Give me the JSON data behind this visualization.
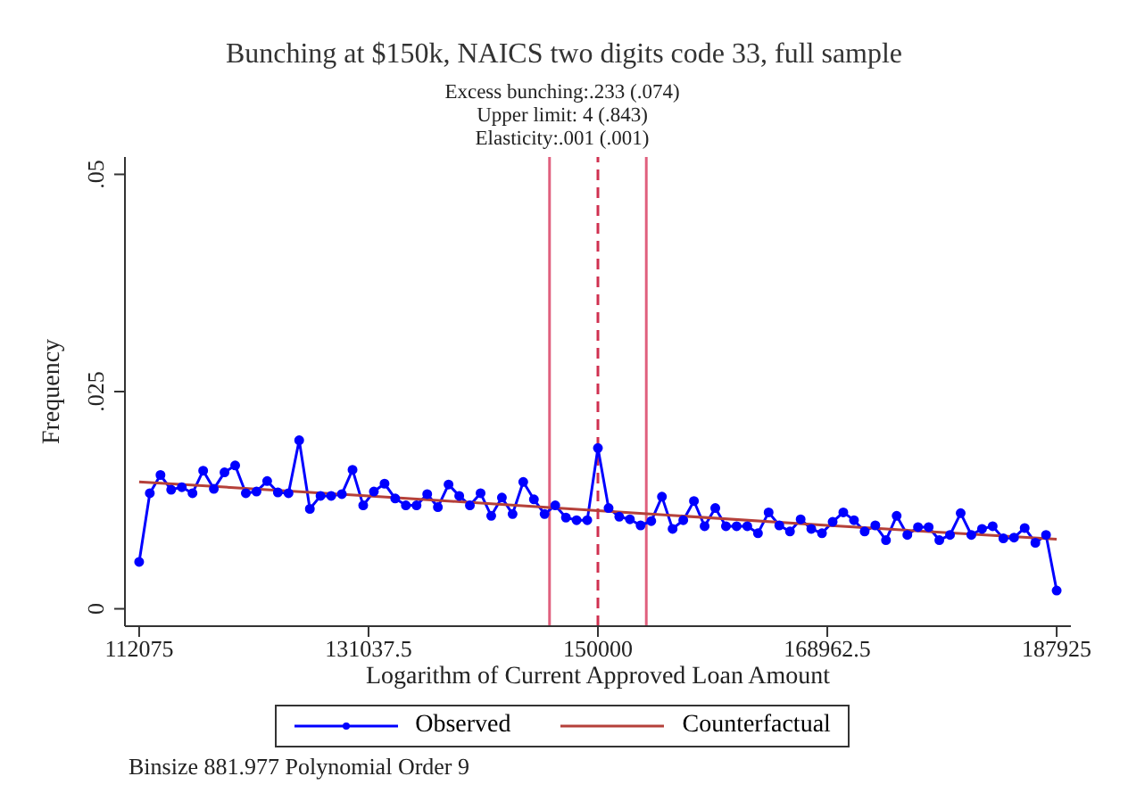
{
  "chart_data": {
    "type": "line",
    "title": "Bunching at $150k, NAICS two digits code 33, full sample",
    "xlabel": "Logarithm of Current Approved Loan Amount",
    "ylabel": "Frequency",
    "annotations": [
      "Excess bunching:.233 (.074)",
      "Upper limit: 4 (.843)",
      "Elasticity:.001 (.001)",
      "Binsize 881.977 Polynomial Order 9"
    ],
    "xlim": [
      110900,
      189100
    ],
    "xticks": [
      112075,
      131037.5,
      150000,
      168962.5,
      187925
    ],
    "ylim": [
      -0.002,
      0.052
    ],
    "yticks": [
      0,
      {
        "value": 0.025,
        "label": ".025"
      },
      {
        "value": 0.05,
        "label": ".05"
      }
    ],
    "grid": false,
    "legend": "bottom",
    "ref_lines": [
      {
        "axis": "x",
        "value": 146000,
        "color": "#e0607e",
        "line_style": "solid"
      },
      {
        "axis": "x",
        "value": 150000,
        "color": "#d03050",
        "line_style": "dashed"
      },
      {
        "axis": "x",
        "value": 154000,
        "color": "#e0607e",
        "line_style": "solid"
      }
    ],
    "series": [
      {
        "name": "Observed",
        "color": "#0000ff",
        "marker": "circle",
        "line_style": "solid",
        "x": [
          112075,
          112957,
          113839,
          114721,
          115603,
          116485,
          117367,
          118249,
          119131,
          120013,
          120895,
          121777,
          122659,
          123541,
          124423,
          125305,
          126187,
          127069,
          127951,
          128833,
          129715,
          130597,
          131479,
          132361,
          133243,
          134125,
          135007,
          135889,
          136771,
          137653,
          138535,
          139417,
          140299,
          141181,
          142063,
          142945,
          143827,
          144709,
          145591,
          146473,
          147355,
          148237,
          149119,
          150001,
          150883,
          151765,
          152647,
          153529,
          154411,
          155293,
          156175,
          157057,
          157939,
          158821,
          159703,
          160585,
          161467,
          162349,
          163231,
          164113,
          164995,
          165877,
          166759,
          167641,
          168523,
          169405,
          170287,
          171169,
          172051,
          172933,
          173815,
          174697,
          175579,
          176461,
          177343,
          178225,
          179107,
          179989,
          180871,
          181753,
          182635,
          183517,
          184399,
          185281,
          186163,
          187045,
          187925
        ],
        "values": [
          0.0054,
          0.0133,
          0.0154,
          0.0137,
          0.014,
          0.0133,
          0.0159,
          0.0138,
          0.0157,
          0.0165,
          0.0133,
          0.0135,
          0.0147,
          0.0134,
          0.0133,
          0.0194,
          0.0115,
          0.013,
          0.013,
          0.0132,
          0.016,
          0.0119,
          0.0135,
          0.0144,
          0.0127,
          0.0119,
          0.0119,
          0.0132,
          0.0117,
          0.0143,
          0.013,
          0.0119,
          0.0133,
          0.0107,
          0.0128,
          0.0109,
          0.0146,
          0.0126,
          0.0109,
          0.0119,
          0.0105,
          0.0102,
          0.0102,
          0.0185,
          0.0116,
          0.0106,
          0.0103,
          0.0096,
          0.0101,
          0.0129,
          0.0092,
          0.0102,
          0.0124,
          0.0095,
          0.0116,
          0.0095,
          0.0095,
          0.0095,
          0.0087,
          0.0111,
          0.0096,
          0.0089,
          0.0103,
          0.0092,
          0.0087,
          0.01,
          0.0111,
          0.0102,
          0.0089,
          0.0096,
          0.0079,
          0.0107,
          0.0085,
          0.0094,
          0.0094,
          0.0079,
          0.0085,
          0.011,
          0.0085,
          0.0092,
          0.0095,
          0.0081,
          0.0082,
          0.0093,
          0.0076,
          0.0085,
          0.0021
        ]
      },
      {
        "name": "Counterfactual",
        "color": "#b5403a",
        "marker": "none",
        "line_style": "solid",
        "x": [
          112075,
          131037.5,
          150000,
          168962.5,
          187925
        ],
        "values": [
          0.0146,
          0.013,
          0.0113,
          0.0096,
          0.008
        ]
      }
    ]
  }
}
